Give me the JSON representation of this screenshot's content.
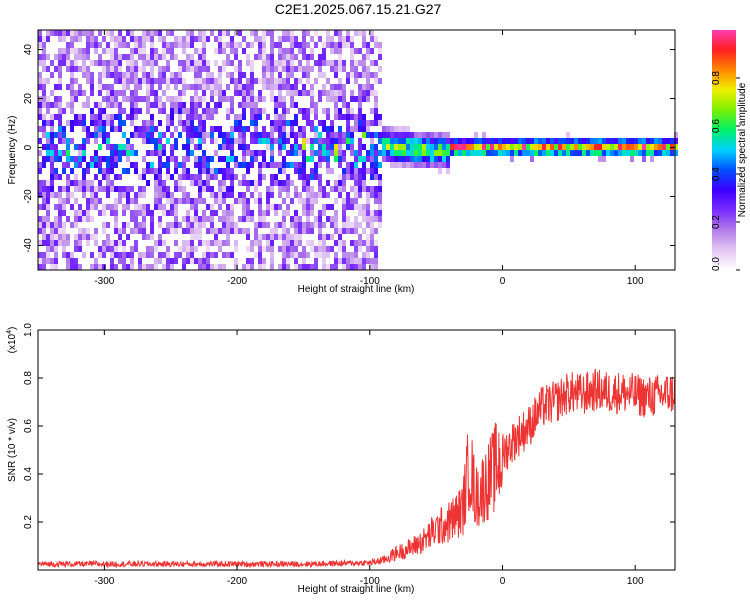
{
  "figure": {
    "title": "C2E1.2025.067.15.21.G27"
  },
  "chart_data": [
    {
      "type": "heatmap",
      "title": "C2E1.2025.067.15.21.G27",
      "xlabel": "Height of straight line (km)",
      "ylabel": "Frequency (Hz)",
      "xlim": [
        -350,
        130
      ],
      "ylim": [
        -50,
        48
      ],
      "x_ticks": [
        -300,
        -200,
        -100,
        0,
        100
      ],
      "y_ticks": [
        -40,
        -20,
        0,
        20,
        40
      ],
      "colorbar": {
        "label": "Normalized spectral amplitude",
        "range": [
          0.0,
          1.0
        ],
        "ticks": [
          "0.0",
          "0.2",
          "0.4",
          "0.6",
          "0.8"
        ],
        "colors": [
          "#ffffff",
          "#e2c6f2",
          "#b27ce8",
          "#7a2cff",
          "#3c00ff",
          "#0050ff",
          "#00d2ff",
          "#00f06a",
          "#7af000",
          "#f0f000",
          "#ff8800",
          "#ff1e1e",
          "#ff3cb4"
        ]
      },
      "structure": [
        {
          "region": "diffuse noise",
          "x_range": [
            -350,
            -92
          ],
          "freq_range": [
            -50,
            48
          ],
          "amplitude": 0.1
        },
        {
          "region": "band center noise",
          "x_range": [
            -350,
            -100
          ],
          "freq_range": [
            -12,
            12
          ],
          "amplitude": 0.2
        },
        {
          "region": "transition",
          "x_range": [
            -105,
            -40
          ],
          "freq_range": [
            -10,
            12
          ],
          "amplitude": 0.45
        },
        {
          "region": "narrow signal band",
          "x_range": [
            -40,
            130
          ],
          "freq_center": 0,
          "freq_halfwidth": 3,
          "amplitude": 0.9
        }
      ]
    },
    {
      "type": "line",
      "xlabel": "Height of straight line (km)",
      "ylabel": "SNR (10 * v/v)",
      "scale_label": "(x10^4)",
      "xlim": [
        -350,
        130
      ],
      "ylim": [
        0,
        1.0
      ],
      "x_ticks": [
        -300,
        -200,
        -100,
        0,
        100
      ],
      "y_ticks": [
        "0.2",
        "0.4",
        "0.6",
        "0.8",
        "1.0"
      ],
      "series": [
        {
          "color": "#ee3333",
          "x": [
            -350,
            -300,
            -250,
            -200,
            -150,
            -100,
            -90,
            -80,
            -70,
            -60,
            -50,
            -40,
            -30,
            -25,
            -20,
            -10,
            0,
            10,
            20,
            30,
            40,
            50,
            60,
            70,
            80,
            90,
            100,
            110,
            120,
            130
          ],
          "y": [
            0.025,
            0.025,
            0.025,
            0.025,
            0.025,
            0.03,
            0.04,
            0.07,
            0.09,
            0.12,
            0.17,
            0.2,
            0.25,
            0.45,
            0.3,
            0.38,
            0.48,
            0.55,
            0.6,
            0.68,
            0.7,
            0.74,
            0.73,
            0.75,
            0.74,
            0.74,
            0.73,
            0.72,
            0.73,
            0.74
          ]
        }
      ]
    }
  ]
}
